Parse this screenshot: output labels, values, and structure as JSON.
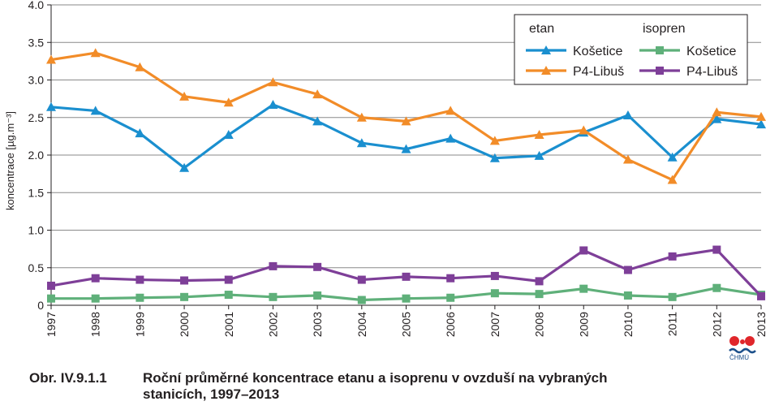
{
  "chart_data": {
    "type": "line",
    "ylabel": "koncentrace [µg.m⁻³]",
    "ylim": [
      0,
      4.0
    ],
    "yticks": [
      "0",
      "0.5",
      "1.0",
      "1.5",
      "2.0",
      "2.5",
      "3.0",
      "3.5",
      "4.0"
    ],
    "yticks_values": [
      0,
      0.5,
      1.0,
      1.5,
      2.0,
      2.5,
      3.0,
      3.5,
      4.0
    ],
    "grid": true,
    "legend_placement": "top-right",
    "categories": [
      "1997",
      "1998",
      "1999",
      "2000",
      "2001",
      "2002",
      "2003",
      "2004",
      "2005",
      "2006",
      "2007",
      "2008",
      "2009",
      "2010",
      "2011",
      "2012",
      "2013"
    ],
    "legend_groups": [
      "etan",
      "isopren"
    ],
    "series": [
      {
        "name": "Košetice",
        "group": "etan",
        "color": "#1a8fcf",
        "marker": "triangle",
        "values": [
          2.64,
          2.59,
          2.29,
          1.83,
          2.27,
          2.67,
          2.45,
          2.16,
          2.08,
          2.22,
          1.96,
          1.99,
          2.3,
          2.53,
          1.97,
          2.48,
          2.41
        ]
      },
      {
        "name": "P4-Libuš",
        "group": "etan",
        "color": "#f28c28",
        "marker": "triangle",
        "values": [
          3.27,
          3.36,
          3.17,
          2.78,
          2.7,
          2.97,
          2.81,
          2.5,
          2.45,
          2.59,
          2.19,
          2.27,
          2.33,
          1.94,
          1.67,
          2.57,
          2.51
        ]
      },
      {
        "name": "Košetice",
        "group": "isopren",
        "color": "#5fb07a",
        "marker": "square",
        "values": [
          0.09,
          0.09,
          0.1,
          0.11,
          0.14,
          0.11,
          0.13,
          0.07,
          0.09,
          0.1,
          0.16,
          0.15,
          0.22,
          0.13,
          0.11,
          0.23,
          0.14
        ]
      },
      {
        "name": "P4-Libuš",
        "group": "isopren",
        "color": "#7e3f98",
        "marker": "square",
        "values": [
          0.26,
          0.36,
          0.34,
          0.33,
          0.34,
          0.52,
          0.51,
          0.34,
          0.38,
          0.36,
          0.39,
          0.32,
          0.73,
          0.47,
          0.65,
          0.74,
          0.12
        ]
      }
    ]
  },
  "caption": {
    "number": "Obr. IV.9.1.1",
    "line1": "Roční průměrné koncentrace etanu a isoprenu v ovzduší na vybraných",
    "line2": "stanicích, 1997–2013"
  },
  "logo": {
    "text": "ČHMÚ",
    "colors": [
      "#e0262b",
      "#1b4f8a"
    ]
  }
}
